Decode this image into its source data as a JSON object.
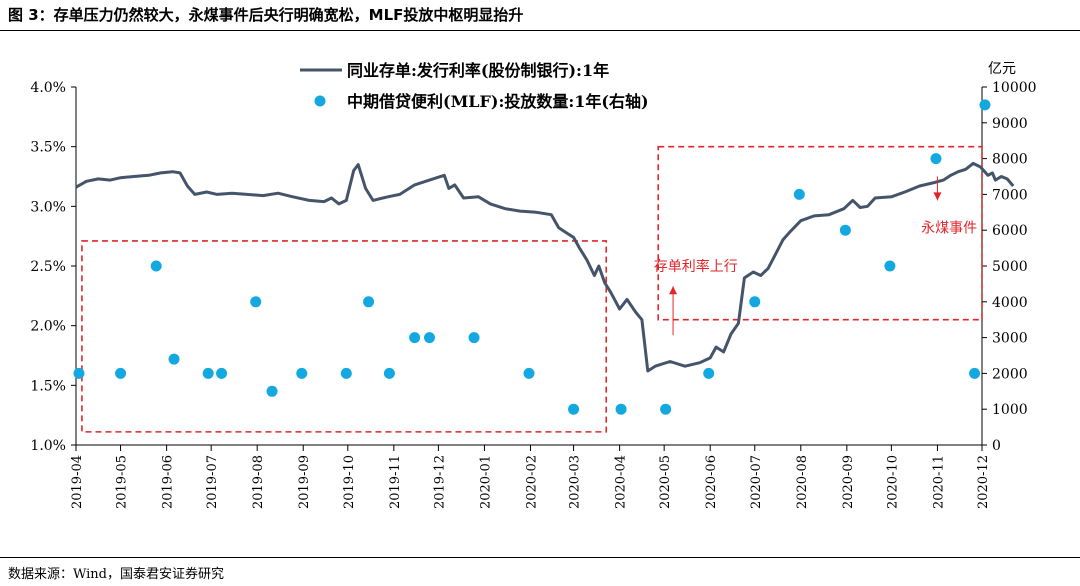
{
  "figure": {
    "title": "图 3：存单压力仍然较大，永煤事件后央行明确宽松，MLF投放中枢明显抬升",
    "source": "数据来源：Wind，国泰君安证券研究"
  },
  "chart_data": {
    "type": "line+scatter",
    "x_tick_labels": [
      "2019-04",
      "2019-05",
      "2019-06",
      "2019-07",
      "2019-08",
      "2019-09",
      "2019-10",
      "2019-11",
      "2019-12",
      "2020-01",
      "2020-02",
      "2020-03",
      "2020-04",
      "2020-05",
      "2020-06",
      "2020-07",
      "2020-08",
      "2020-09",
      "2020-10",
      "2020-11",
      "2020-12"
    ],
    "y_left": {
      "ticks": [
        "1.0%",
        "1.5%",
        "2.0%",
        "2.5%",
        "3.0%",
        "3.5%",
        "4.0%"
      ],
      "ylim": [
        1.0,
        4.0
      ]
    },
    "y_right": {
      "unit_label": "亿元",
      "ticks": [
        "0",
        "1000",
        "2000",
        "3000",
        "4000",
        "5000",
        "6000",
        "7000",
        "8000",
        "9000",
        "10000"
      ],
      "ylim": [
        0,
        10000
      ]
    },
    "legend": {
      "placement": "top-center",
      "line_label": "同业存单:发行利率(股份制银行):1年",
      "scatter_label": "中期借贷便利(MLF):投放数量:1年(右轴)"
    },
    "colors": {
      "line": "#44546a",
      "scatter": "#14a8e0",
      "annotation": "#e0262a"
    },
    "line_series": {
      "name": "同业存单:发行利率(股份制银行):1年",
      "points": [
        [
          "2019-04-01",
          3.16
        ],
        [
          "2019-04-08",
          3.21
        ],
        [
          "2019-04-16",
          3.23
        ],
        [
          "2019-04-24",
          3.22
        ],
        [
          "2019-05-01",
          3.24
        ],
        [
          "2019-05-10",
          3.25
        ],
        [
          "2019-05-20",
          3.26
        ],
        [
          "2019-05-28",
          3.28
        ],
        [
          "2019-06-05",
          3.29
        ],
        [
          "2019-06-10",
          3.28
        ],
        [
          "2019-06-15",
          3.17
        ],
        [
          "2019-06-20",
          3.1
        ],
        [
          "2019-06-28",
          3.12
        ],
        [
          "2019-07-05",
          3.1
        ],
        [
          "2019-07-15",
          3.11
        ],
        [
          "2019-07-25",
          3.1
        ],
        [
          "2019-08-05",
          3.09
        ],
        [
          "2019-08-15",
          3.11
        ],
        [
          "2019-08-25",
          3.08
        ],
        [
          "2019-09-05",
          3.05
        ],
        [
          "2019-09-15",
          3.04
        ],
        [
          "2019-09-20",
          3.07
        ],
        [
          "2019-09-25",
          3.02
        ],
        [
          "2019-09-30",
          3.05
        ],
        [
          "2019-10-05",
          3.3
        ],
        [
          "2019-10-08",
          3.35
        ],
        [
          "2019-10-13",
          3.15
        ],
        [
          "2019-10-18",
          3.05
        ],
        [
          "2019-10-28",
          3.08
        ],
        [
          "2019-11-05",
          3.1
        ],
        [
          "2019-11-15",
          3.18
        ],
        [
          "2019-11-25",
          3.22
        ],
        [
          "2019-12-05",
          3.26
        ],
        [
          "2019-12-08",
          3.15
        ],
        [
          "2019-12-12",
          3.18
        ],
        [
          "2019-12-18",
          3.07
        ],
        [
          "2019-12-28",
          3.08
        ],
        [
          "2020-01-05",
          3.02
        ],
        [
          "2020-01-15",
          2.98
        ],
        [
          "2020-01-25",
          2.96
        ],
        [
          "2020-02-05",
          2.95
        ],
        [
          "2020-02-15",
          2.93
        ],
        [
          "2020-02-20",
          2.82
        ],
        [
          "2020-02-25",
          2.78
        ],
        [
          "2020-03-01",
          2.74
        ],
        [
          "2020-03-05",
          2.65
        ],
        [
          "2020-03-10",
          2.55
        ],
        [
          "2020-03-15",
          2.42
        ],
        [
          "2020-03-18",
          2.5
        ],
        [
          "2020-03-22",
          2.36
        ],
        [
          "2020-03-26",
          2.28
        ],
        [
          "2020-04-01",
          2.14
        ],
        [
          "2020-04-06",
          2.22
        ],
        [
          "2020-04-12",
          2.11
        ],
        [
          "2020-04-16",
          2.05
        ],
        [
          "2020-04-20",
          1.62
        ],
        [
          "2020-04-25",
          1.66
        ],
        [
          "2020-05-05",
          1.7
        ],
        [
          "2020-05-15",
          1.66
        ],
        [
          "2020-05-25",
          1.69
        ],
        [
          "2020-06-01",
          1.73
        ],
        [
          "2020-06-05",
          1.82
        ],
        [
          "2020-06-10",
          1.78
        ],
        [
          "2020-06-15",
          1.93
        ],
        [
          "2020-06-20",
          2.02
        ],
        [
          "2020-06-24",
          2.4
        ],
        [
          "2020-06-30",
          2.45
        ],
        [
          "2020-07-05",
          2.42
        ],
        [
          "2020-07-10",
          2.48
        ],
        [
          "2020-07-15",
          2.6
        ],
        [
          "2020-07-20",
          2.72
        ],
        [
          "2020-07-25",
          2.79
        ],
        [
          "2020-08-01",
          2.88
        ],
        [
          "2020-08-10",
          2.92
        ],
        [
          "2020-08-20",
          2.93
        ],
        [
          "2020-08-30",
          2.98
        ],
        [
          "2020-09-05",
          3.05
        ],
        [
          "2020-09-10",
          2.99
        ],
        [
          "2020-09-15",
          3.0
        ],
        [
          "2020-09-20",
          3.07
        ],
        [
          "2020-10-01",
          3.08
        ],
        [
          "2020-10-10",
          3.12
        ],
        [
          "2020-10-20",
          3.17
        ],
        [
          "2020-10-30",
          3.2
        ],
        [
          "2020-11-05",
          3.22
        ],
        [
          "2020-11-10",
          3.26
        ],
        [
          "2020-11-15",
          3.29
        ],
        [
          "2020-11-20",
          3.31
        ],
        [
          "2020-11-25",
          3.36
        ],
        [
          "2020-11-30",
          3.33
        ],
        [
          "2020-12-05",
          3.26
        ],
        [
          "2020-12-08",
          3.28
        ],
        [
          "2020-12-10",
          3.22
        ],
        [
          "2020-12-14",
          3.25
        ],
        [
          "2020-12-18",
          3.23
        ],
        [
          "2020-12-22",
          3.17
        ]
      ]
    },
    "scatter_series": {
      "name": "中期借贷便利(MLF):投放数量:1年(右轴)",
      "points": [
        [
          "2019-04-03",
          2000
        ],
        [
          "2019-05-01",
          2000
        ],
        [
          "2019-05-25",
          5000
        ],
        [
          "2019-06-06",
          2400
        ],
        [
          "2019-06-29",
          2000
        ],
        [
          "2019-07-08",
          2000
        ],
        [
          "2019-07-31",
          4000
        ],
        [
          "2019-08-11",
          1500
        ],
        [
          "2019-08-31",
          2000
        ],
        [
          "2019-09-30",
          2000
        ],
        [
          "2019-10-15",
          4000
        ],
        [
          "2019-10-29",
          2000
        ],
        [
          "2019-11-15",
          3000
        ],
        [
          "2019-11-25",
          3000
        ],
        [
          "2019-12-25",
          3000
        ],
        [
          "2020-01-31",
          2000
        ],
        [
          "2020-03-01",
          1000
        ],
        [
          "2020-04-02",
          1000
        ],
        [
          "2020-05-02",
          1000
        ],
        [
          "2020-05-31",
          2000
        ],
        [
          "2020-07-01",
          4000
        ],
        [
          "2020-07-31",
          7000
        ],
        [
          "2020-08-31",
          6000
        ],
        [
          "2020-09-30",
          5000
        ],
        [
          "2020-10-31",
          8000
        ],
        [
          "2020-11-26",
          2000
        ],
        [
          "2020-12-03",
          9500
        ]
      ]
    },
    "annotations": [
      {
        "name": "存单利率上行",
        "text": "存单利率上行"
      },
      {
        "name": "永煤事件",
        "text": "永煤事件"
      }
    ]
  }
}
